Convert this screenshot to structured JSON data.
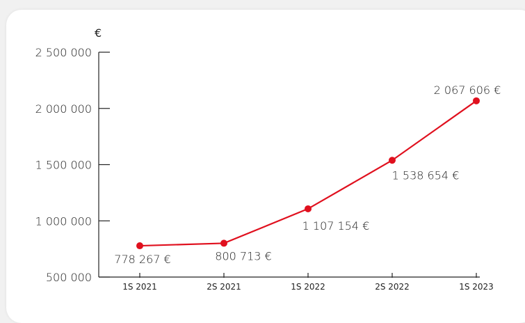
{
  "chart_data": {
    "type": "line",
    "title": "",
    "xlabel": "",
    "ylabel": "€",
    "categories": [
      "1S 2021",
      "2S 2021",
      "1S 2022",
      "2S 2022",
      "1S 2023"
    ],
    "yticks": [
      "500 000",
      "1 000 000",
      "1 500 000",
      "2 000 000",
      "2 500 000"
    ],
    "ytick_values": [
      500000,
      1000000,
      1500000,
      2000000,
      2500000
    ],
    "ylim": [
      500000,
      2500000
    ],
    "grid": false,
    "series": [
      {
        "values": [
          778267,
          800713,
          1107154,
          1538654,
          2067606
        ],
        "labels": [
          "778 267 €",
          "800 713 €",
          "1 107 154 €",
          "1 538 654 €",
          "2 067 606 €"
        ]
      }
    ],
    "colors": {
      "line": "#e0101e",
      "axis": "#222222"
    }
  }
}
